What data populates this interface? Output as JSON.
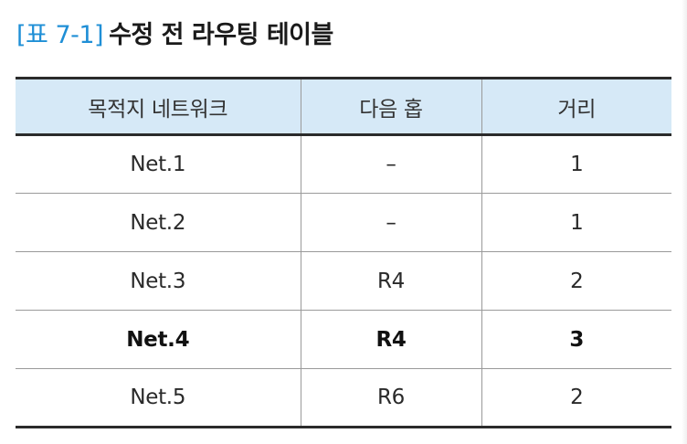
{
  "caption": {
    "tag": "[표 7-1]",
    "title": "수정 전 라우팅 테이블"
  },
  "table": {
    "headers": [
      "목적지 네트워크",
      "다음 홉",
      "거리"
    ],
    "rows": [
      {
        "destination": "Net.1",
        "next_hop": "–",
        "distance": "1",
        "bold": false
      },
      {
        "destination": "Net.2",
        "next_hop": "–",
        "distance": "1",
        "bold": false
      },
      {
        "destination": "Net.3",
        "next_hop": "R4",
        "distance": "2",
        "bold": false
      },
      {
        "destination": "Net.4",
        "next_hop": "R4",
        "distance": "3",
        "bold": true
      },
      {
        "destination": "Net.5",
        "next_hop": "R6",
        "distance": "2",
        "bold": false
      }
    ]
  },
  "colors": {
    "caption_tag": "#1f8fd6",
    "header_background": "#d6e9f7",
    "rule": "#2b2b2b"
  }
}
